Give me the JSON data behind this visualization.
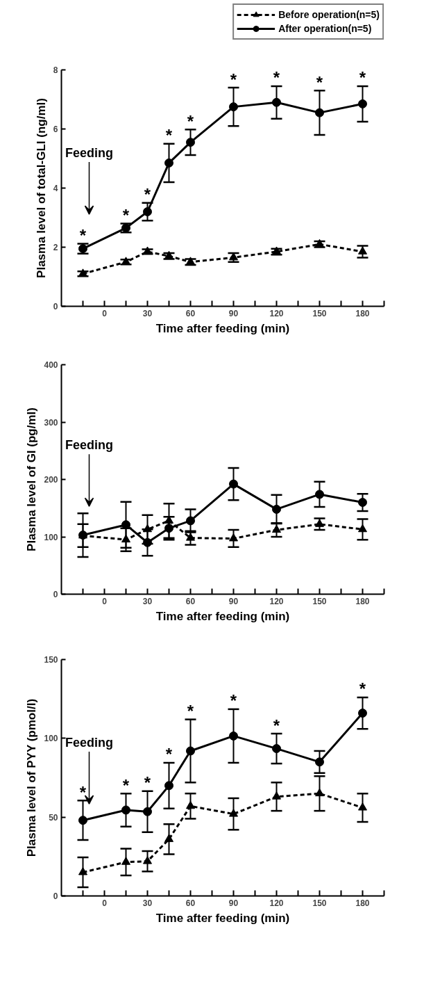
{
  "chart_data": [
    {
      "type": "line",
      "xlabel": "Time after feeding (min)",
      "ylabel": "Plasma level of total-GLI (ng/ml)",
      "x": [
        -15,
        15,
        30,
        45,
        60,
        90,
        120,
        150,
        180
      ],
      "series": [
        {
          "name": "Before operation(n=5)",
          "color": "#000000",
          "marker": "triangle",
          "line_style": "dashed",
          "values": [
            1.1,
            1.5,
            1.85,
            1.7,
            1.5,
            1.65,
            1.85,
            2.1,
            1.85
          ],
          "errors": [
            0.08,
            0.08,
            0.08,
            0.1,
            0.1,
            0.15,
            0.1,
            0.1,
            0.2
          ]
        },
        {
          "name": "After operation(n=5)",
          "color": "#000000",
          "marker": "circle",
          "line_style": "solid",
          "values": [
            1.95,
            2.65,
            3.2,
            4.85,
            5.55,
            6.75,
            6.9,
            6.55,
            6.85
          ],
          "errors": [
            0.17,
            0.15,
            0.3,
            0.65,
            0.43,
            0.65,
            0.55,
            0.75,
            0.6
          ]
        }
      ],
      "xlim": [
        -30,
        195
      ],
      "xticks": [
        {
          "value": -15,
          "label": null
        },
        0,
        {
          "value": 15,
          "label": null
        },
        30,
        {
          "value": 45,
          "label": null
        },
        60,
        {
          "value": 75,
          "label": null
        },
        90,
        {
          "value": 105,
          "label": null
        },
        120,
        {
          "value": 135,
          "label": null
        },
        150,
        {
          "value": 165,
          "label": null
        },
        180,
        {
          "value": 195,
          "label": null
        }
      ],
      "ylim": [
        0,
        8
      ],
      "yticks": [
        0,
        2,
        4,
        6,
        8
      ],
      "grid": false,
      "legend": "top right",
      "annotations": [
        "Feeding",
        {
          "text": "*",
          "x": -15,
          "y": 1.95
        },
        {
          "text": "*",
          "x": 15,
          "y": 2.65
        },
        {
          "text": "*",
          "x": 30,
          "y": 3.2
        },
        {
          "text": "*",
          "x": 45,
          "y": 4.85
        },
        {
          "text": "*",
          "x": 60,
          "y": 5.55
        },
        {
          "text": "*",
          "x": 90,
          "y": 6.75
        },
        {
          "text": "*",
          "x": 120,
          "y": 6.9
        },
        {
          "text": "*",
          "x": 150,
          "y": 6.55
        },
        {
          "text": "*",
          "x": 180,
          "y": 6.85
        }
      ]
    },
    {
      "type": "line",
      "xlabel": "Time after feeding (min)",
      "ylabel": "Plasma level of GI (pg/ml)",
      "x": [
        -15,
        15,
        30,
        45,
        60,
        90,
        120,
        150,
        180
      ],
      "series": [
        {
          "color": "#000000",
          "marker": "triangle",
          "line_style": "dashed",
          "values": [
            102,
            95,
            113,
            128,
            98,
            97,
            112,
            122,
            113
          ],
          "errors": [
            20,
            20,
            25,
            30,
            12,
            15,
            12,
            10,
            18
          ]
        },
        {
          "color": "#000000",
          "marker": "circle",
          "line_style": "solid",
          "values": [
            103,
            121,
            90,
            115,
            128,
            192,
            148,
            174,
            160
          ],
          "errors": [
            38,
            40,
            23,
            20,
            20,
            28,
            25,
            22,
            15
          ]
        }
      ],
      "xlim": [
        -30,
        195
      ],
      "xticks": [
        {
          "value": -15,
          "label": null
        },
        0,
        {
          "value": 15,
          "label": null
        },
        30,
        {
          "value": 45,
          "label": null
        },
        60,
        {
          "value": 75,
          "label": null
        },
        90,
        {
          "value": 105,
          "label": null
        },
        120,
        {
          "value": 135,
          "label": null
        },
        150,
        {
          "value": 165,
          "label": null
        },
        180,
        {
          "value": 195,
          "label": null
        }
      ],
      "ylim": [
        0,
        400
      ],
      "yticks": [
        0,
        100,
        200,
        300,
        400
      ],
      "grid": false,
      "annotations": [
        "Feeding"
      ]
    },
    {
      "type": "line",
      "xlabel": "Time after feeding (min)",
      "ylabel": "Plasma level of PYY (pmol/l)",
      "x": [
        -15,
        15,
        30,
        45,
        60,
        90,
        120,
        150,
        180
      ],
      "series": [
        {
          "color": "#000000",
          "marker": "triangle",
          "line_style": "dashed",
          "values": [
            15,
            21.5,
            22,
            36,
            57,
            52,
            63,
            65,
            56
          ],
          "errors": [
            9.5,
            8.5,
            6.5,
            9.5,
            8,
            10,
            9,
            11,
            9
          ]
        },
        {
          "color": "#000000",
          "marker": "circle",
          "line_style": "solid",
          "values": [
            48,
            54.5,
            53.5,
            70,
            92,
            101.5,
            93.5,
            85,
            116
          ],
          "errors": [
            12.5,
            10.5,
            13,
            14.5,
            20,
            17,
            9.5,
            7,
            10
          ]
        }
      ],
      "xlim": [
        -30,
        195
      ],
      "xticks": [
        {
          "value": -15,
          "label": null
        },
        0,
        {
          "value": 15,
          "label": null
        },
        30,
        {
          "value": 45,
          "label": null
        },
        60,
        {
          "value": 75,
          "label": null
        },
        90,
        {
          "value": 105,
          "label": null
        },
        120,
        {
          "value": 135,
          "label": null
        },
        150,
        {
          "value": 165,
          "label": null
        },
        180,
        {
          "value": 195,
          "label": null
        }
      ],
      "ylim": [
        0,
        150
      ],
      "yticks": [
        0,
        50,
        100,
        150
      ],
      "grid": false,
      "annotations": [
        "Feeding",
        {
          "text": "*",
          "x": -15,
          "y": 48
        },
        {
          "text": "*",
          "x": 15,
          "y": 54.5
        },
        {
          "text": "*",
          "x": 30,
          "y": 53.5
        },
        {
          "text": "*",
          "x": 45,
          "y": 70
        },
        {
          "text": "*",
          "x": 60,
          "y": 92
        },
        {
          "text": "*",
          "x": 90,
          "y": 101.5
        },
        {
          "text": "*",
          "x": 120,
          "y": 93.5
        },
        {
          "text": "*",
          "x": 180,
          "y": 116
        }
      ]
    }
  ]
}
